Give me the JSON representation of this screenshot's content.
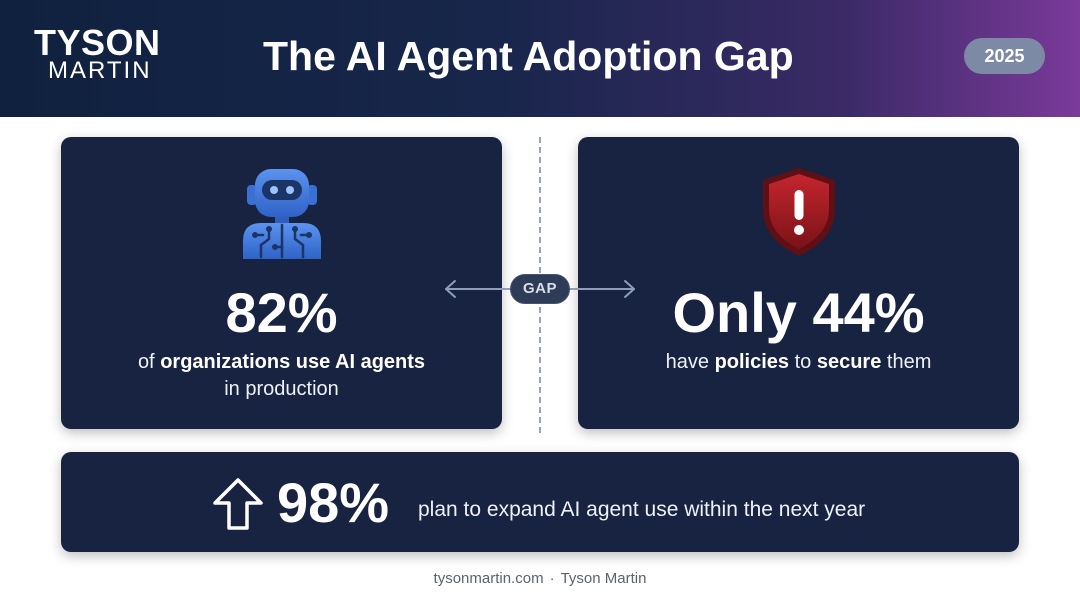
{
  "header": {
    "logo_top": "TYSON",
    "logo_bottom": "MARTIN",
    "title": "The AI Agent Adoption Gap",
    "year": "2025"
  },
  "left_card": {
    "icon": "robot-icon",
    "stat": "82%",
    "desc_prefix": "of ",
    "desc_bold": "organizations use AI agents",
    "desc_line2": "in production"
  },
  "gap": {
    "label": "GAP"
  },
  "right_card": {
    "icon": "shield-warning-icon",
    "stat": "Only 44%",
    "desc_part1": "have ",
    "desc_bold1": "policies",
    "desc_part2": " to ",
    "desc_bold2": "secure",
    "desc_part3": " them"
  },
  "bottom_card": {
    "icon": "up-arrow-icon",
    "stat": "98%",
    "desc": "plan to expand AI agent use within the next year"
  },
  "footer": {
    "site": "tysonmartin.com",
    "separator": "·",
    "author": "Tyson Martin"
  },
  "colors": {
    "card_bg": "#172340",
    "header_start": "#10213f",
    "header_end": "#7a3a9a",
    "robot_blue": "#3f7ce0",
    "shield_red": "#9b1c22"
  }
}
